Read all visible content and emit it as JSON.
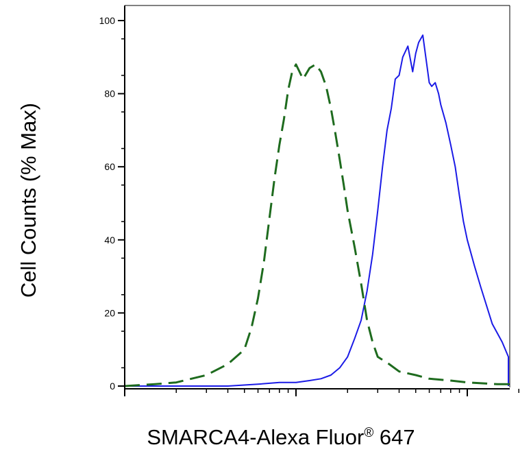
{
  "chart_data": {
    "type": "line",
    "title": "",
    "xlabel": "SMARCA4-Alexa Fluor",
    "xlabel_mark": "®",
    "xlabel_suffix": " 647",
    "ylabel": "Cell Counts (% Max)",
    "xscale": "log",
    "xlim": [
      1,
      1000
    ],
    "ylim": [
      0,
      102
    ],
    "yticks": [
      0,
      20,
      40,
      60,
      80,
      100
    ],
    "ytick_labels": [
      "0",
      "20",
      "40",
      "60",
      "80",
      "100"
    ],
    "grid": false,
    "legend": "none",
    "series": [
      {
        "color": "#1a1ae6",
        "style": "solid",
        "x": [
          1,
          2.5,
          4,
          6,
          8,
          10,
          12,
          14,
          16,
          18,
          20,
          22,
          24,
          26,
          28,
          30,
          32,
          34,
          36,
          38,
          40,
          42,
          45,
          48,
          50,
          52,
          55,
          58,
          60,
          62,
          65,
          68,
          70,
          75,
          80,
          85,
          90,
          95,
          100,
          110,
          120,
          140,
          160,
          180,
          200,
          250,
          300,
          400,
          500,
          600,
          700,
          800,
          1000
        ],
        "y": [
          0,
          0,
          0,
          0.5,
          1,
          1,
          1.5,
          2,
          3,
          5,
          8,
          13,
          18,
          26,
          36,
          48,
          60,
          70,
          76,
          84,
          85,
          90,
          93,
          86,
          91,
          94,
          96,
          88,
          83,
          82,
          83,
          80,
          77,
          72,
          66,
          60,
          52,
          45,
          40,
          33,
          27,
          17,
          12,
          8,
          5,
          3,
          2,
          1,
          0.5,
          0.5,
          0.3,
          0.2,
          0
        ]
      },
      {
        "color": "#1e6b1e",
        "style": "dashed",
        "x": [
          1,
          1.5,
          2,
          3,
          4,
          5,
          5.5,
          6,
          6.5,
          7,
          7.5,
          8,
          8.5,
          9,
          9.5,
          10,
          11,
          12,
          13,
          14,
          15,
          16,
          17,
          18,
          19,
          20,
          22,
          24,
          26,
          28,
          30,
          35,
          40,
          50,
          60,
          80,
          100,
          150,
          200,
          300,
          500,
          800,
          1000
        ],
        "y": [
          0,
          0.5,
          1,
          3,
          6,
          10,
          16,
          24,
          34,
          46,
          57,
          66,
          73,
          81,
          86,
          88,
          84,
          87,
          88,
          86,
          82,
          76,
          69,
          62,
          55,
          48,
          38,
          28,
          18,
          12,
          8,
          6,
          4,
          3,
          2,
          1.5,
          1,
          0.5,
          0.5,
          0.3,
          0.2,
          0.1,
          0
        ]
      }
    ]
  }
}
